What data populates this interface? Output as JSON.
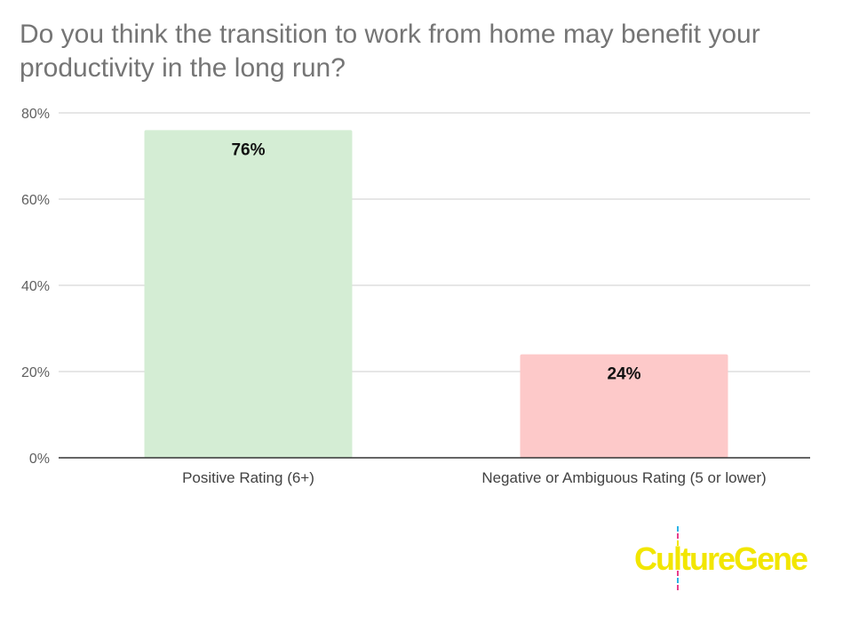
{
  "title": "Do you think the transition to work from home may benefit your productivity in the long run?",
  "chart_data": {
    "type": "bar",
    "categories": [
      "Positive Rating (6+)",
      "Negative or Ambiguous Rating (5 or lower)"
    ],
    "values": [
      76,
      24
    ],
    "data_labels": [
      "76%",
      "24%"
    ],
    "bar_colors": [
      "#d4edd4",
      "#fdc9c9"
    ],
    "ylim": [
      0,
      80
    ],
    "yticks": [
      0,
      20,
      40,
      60,
      80
    ],
    "ytick_labels": [
      "0%",
      "20%",
      "40%",
      "60%",
      "80%"
    ],
    "grid": true,
    "legend": "none"
  },
  "logo": {
    "text": "CultureGene",
    "color": "#f2e600"
  }
}
